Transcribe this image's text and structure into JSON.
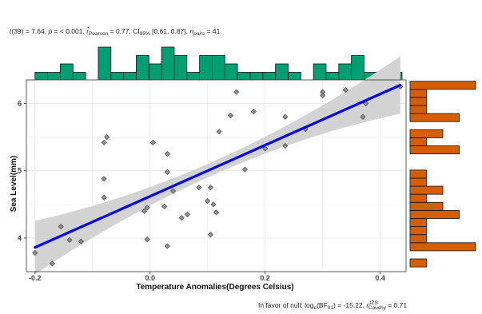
{
  "subtitle": {
    "t_sym": "t",
    "t_df": "(39) = 7.64, ",
    "p_sym": "p",
    "p_val": " = < 0.001, ",
    "r_sym": "r̂",
    "r_sub": "Pearson",
    "r_val": " = 0.77, CI",
    "ci_sub": "95%",
    "ci_val": " [0.61, 0.87], ",
    "n_sym": "n",
    "n_sub": "pairs",
    "n_val": " = 41"
  },
  "caption": {
    "lead": "In favor of null: log",
    "log_sub": "e",
    "bf": "(BF",
    "bf_sub": "01",
    "bf_val": ") = -15.22, ",
    "r_sym": "r",
    "r_sup": "JZS",
    "r_sub": "Cauchy",
    "r_val": " = 0.71"
  },
  "colors": {
    "points": "#808080",
    "fit_line": "#0000ff",
    "ribbon": "#d3d3d3",
    "top_hist": "#009e73",
    "side_hist": "#d55e00",
    "grid": "#ebebeb"
  },
  "chart_data": {
    "type": "scatter",
    "xlabel": "Temperature Anomalies(Degrees Celsius)",
    "ylabel": "Sea Level(mm)",
    "xlim": [
      -0.215,
      0.445
    ],
    "ylim": [
      3.5,
      6.35
    ],
    "x_ticks": [
      -0.2,
      0.0,
      0.2,
      0.4
    ],
    "x_tick_labels": [
      "-0.2",
      "0.0",
      "0.2",
      "0.4"
    ],
    "y_ticks": [
      4,
      5,
      6
    ],
    "y_tick_labels": [
      "4",
      "5",
      "6"
    ],
    "grid": true,
    "regression": {
      "intercept": 4.62,
      "slope": 3.8,
      "x_range": [
        -0.2,
        0.435
      ]
    },
    "points": [
      {
        "x": -0.2,
        "y": 3.78
      },
      {
        "x": -0.17,
        "y": 3.62
      },
      {
        "x": -0.155,
        "y": 4.17
      },
      {
        "x": -0.14,
        "y": 3.97
      },
      {
        "x": -0.12,
        "y": 3.95
      },
      {
        "x": -0.08,
        "y": 5.42
      },
      {
        "x": -0.075,
        "y": 5.5
      },
      {
        "x": -0.08,
        "y": 4.88
      },
      {
        "x": -0.08,
        "y": 4.6
      },
      {
        "x": -0.01,
        "y": 4.4
      },
      {
        "x": -0.005,
        "y": 4.45
      },
      {
        "x": -0.005,
        "y": 3.98
      },
      {
        "x": 0.005,
        "y": 5.42
      },
      {
        "x": 0.025,
        "y": 4.47
      },
      {
        "x": 0.03,
        "y": 5.25
      },
      {
        "x": 0.03,
        "y": 4.98
      },
      {
        "x": 0.04,
        "y": 4.7
      },
      {
        "x": 0.055,
        "y": 4.3
      },
      {
        "x": 0.065,
        "y": 4.35
      },
      {
        "x": 0.085,
        "y": 4.75
      },
      {
        "x": 0.1,
        "y": 4.55
      },
      {
        "x": 0.105,
        "y": 4.75
      },
      {
        "x": 0.11,
        "y": 4.5
      },
      {
        "x": 0.115,
        "y": 4.38
      },
      {
        "x": 0.105,
        "y": 4.05
      },
      {
        "x": 0.03,
        "y": 3.88
      },
      {
        "x": 0.12,
        "y": 5.58
      },
      {
        "x": 0.14,
        "y": 5.82
      },
      {
        "x": 0.15,
        "y": 6.17
      },
      {
        "x": 0.165,
        "y": 5.02
      },
      {
        "x": 0.18,
        "y": 5.88
      },
      {
        "x": 0.2,
        "y": 5.33
      },
      {
        "x": 0.235,
        "y": 5.37
      },
      {
        "x": 0.235,
        "y": 5.8
      },
      {
        "x": 0.27,
        "y": 5.62
      },
      {
        "x": 0.3,
        "y": 6.17
      },
      {
        "x": 0.3,
        "y": 6.12
      },
      {
        "x": 0.34,
        "y": 6.2
      },
      {
        "x": 0.37,
        "y": 5.8
      },
      {
        "x": 0.375,
        "y": 6.0
      },
      {
        "x": 0.435,
        "y": 6.25
      }
    ],
    "top_histogram": [
      {
        "x0": -0.2,
        "x1": -0.178,
        "count": 1
      },
      {
        "x0": -0.178,
        "x1": -0.156,
        "count": 1
      },
      {
        "x0": -0.156,
        "x1": -0.134,
        "count": 2
      },
      {
        "x0": -0.134,
        "x1": -0.112,
        "count": 1
      },
      {
        "x0": -0.112,
        "x1": -0.09,
        "count": 0
      },
      {
        "x0": -0.09,
        "x1": -0.068,
        "count": 4
      },
      {
        "x0": -0.068,
        "x1": -0.046,
        "count": 1
      },
      {
        "x0": -0.046,
        "x1": -0.024,
        "count": 1
      },
      {
        "x0": -0.024,
        "x1": -0.002,
        "count": 3
      },
      {
        "x0": -0.002,
        "x1": 0.02,
        "count": 2
      },
      {
        "x0": 0.02,
        "x1": 0.042,
        "count": 4
      },
      {
        "x0": 0.042,
        "x1": 0.064,
        "count": 3
      },
      {
        "x0": 0.064,
        "x1": 0.086,
        "count": 1
      },
      {
        "x0": 0.086,
        "x1": 0.108,
        "count": 3
      },
      {
        "x0": 0.108,
        "x1": 0.13,
        "count": 3
      },
      {
        "x0": 0.13,
        "x1": 0.152,
        "count": 2
      },
      {
        "x0": 0.152,
        "x1": 0.174,
        "count": 1
      },
      {
        "x0": 0.174,
        "x1": 0.196,
        "count": 1
      },
      {
        "x0": 0.196,
        "x1": 0.218,
        "count": 1
      },
      {
        "x0": 0.218,
        "x1": 0.24,
        "count": 2
      },
      {
        "x0": 0.24,
        "x1": 0.262,
        "count": 1
      },
      {
        "x0": 0.262,
        "x1": 0.284,
        "count": 0
      },
      {
        "x0": 0.284,
        "x1": 0.306,
        "count": 2
      },
      {
        "x0": 0.306,
        "x1": 0.328,
        "count": 1
      },
      {
        "x0": 0.328,
        "x1": 0.35,
        "count": 2
      },
      {
        "x0": 0.35,
        "x1": 0.372,
        "count": 3
      },
      {
        "x0": 0.372,
        "x1": 0.394,
        "count": 1
      },
      {
        "x0": 0.394,
        "x1": 0.416,
        "count": 0
      },
      {
        "x0": 0.416,
        "x1": 0.438,
        "count": 1
      }
    ],
    "side_histogram": [
      {
        "y0": 3.57,
        "y1": 3.69,
        "count": 1
      },
      {
        "y0": 3.69,
        "y1": 3.81,
        "count": 0
      },
      {
        "y0": 3.81,
        "y1": 3.93,
        "count": 4
      },
      {
        "y0": 3.93,
        "y1": 4.05,
        "count": 1
      },
      {
        "y0": 4.05,
        "y1": 4.17,
        "count": 1
      },
      {
        "y0": 4.17,
        "y1": 4.29,
        "count": 1
      },
      {
        "y0": 4.29,
        "y1": 4.41,
        "count": 3
      },
      {
        "y0": 4.41,
        "y1": 4.53,
        "count": 2
      },
      {
        "y0": 4.53,
        "y1": 4.65,
        "count": 1
      },
      {
        "y0": 4.65,
        "y1": 4.77,
        "count": 2
      },
      {
        "y0": 4.77,
        "y1": 4.89,
        "count": 1
      },
      {
        "y0": 4.89,
        "y1": 5.01,
        "count": 1
      },
      {
        "y0": 5.01,
        "y1": 5.13,
        "count": 0
      },
      {
        "y0": 5.13,
        "y1": 5.25,
        "count": 0
      },
      {
        "y0": 5.25,
        "y1": 5.37,
        "count": 3
      },
      {
        "y0": 5.37,
        "y1": 5.49,
        "count": 1
      },
      {
        "y0": 5.49,
        "y1": 5.61,
        "count": 2
      },
      {
        "y0": 5.61,
        "y1": 5.73,
        "count": 0
      },
      {
        "y0": 5.73,
        "y1": 5.85,
        "count": 3
      },
      {
        "y0": 5.85,
        "y1": 5.97,
        "count": 1
      },
      {
        "y0": 5.97,
        "y1": 6.09,
        "count": 1
      },
      {
        "y0": 6.09,
        "y1": 6.21,
        "count": 1
      },
      {
        "y0": 6.21,
        "y1": 6.33,
        "count": 4
      }
    ]
  }
}
